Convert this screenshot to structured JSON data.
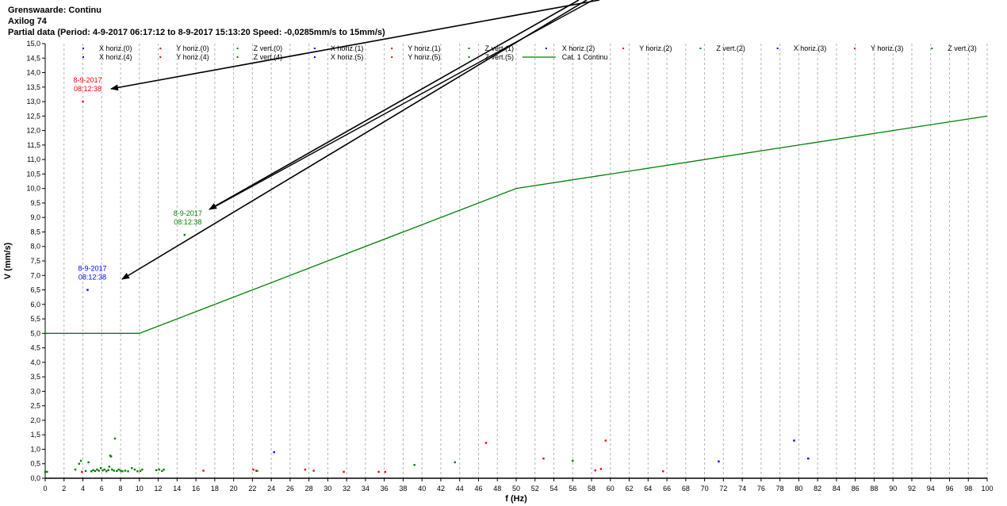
{
  "header": {
    "line1": "Grenswaarde: Continu",
    "line2": "Axilog 74",
    "line3": "Partial data (Period: 4-9-2017 06:17:12 to 8-9-2017 15:13:20 Speed: -0,0285mm/s to 15mm/s)"
  },
  "colors": {
    "x": "#0000ff",
    "y": "#ff0000",
    "z": "#008000",
    "limit": "#008000"
  },
  "chart_data": {
    "type": "scatter",
    "xlabel": "f (Hz)",
    "ylabel": "V (mm/s)",
    "xlim": [
      0,
      100
    ],
    "ylim": [
      0,
      15
    ],
    "xticks": [
      0,
      2,
      4,
      6,
      8,
      10,
      12,
      14,
      16,
      18,
      20,
      22,
      24,
      26,
      28,
      30,
      32,
      34,
      36,
      38,
      40,
      42,
      44,
      46,
      48,
      50,
      52,
      54,
      56,
      58,
      60,
      62,
      64,
      66,
      68,
      70,
      72,
      74,
      76,
      78,
      80,
      82,
      84,
      86,
      88,
      90,
      92,
      94,
      96,
      98,
      100
    ],
    "yticks": [
      0,
      0.5,
      1,
      1.5,
      2,
      2.5,
      3,
      3.5,
      4,
      4.5,
      5,
      5.5,
      6,
      6.5,
      7,
      7.5,
      8,
      8.5,
      9,
      9.5,
      10,
      10.5,
      11,
      11.5,
      12,
      12.5,
      13,
      13.5,
      14,
      14.5,
      15
    ],
    "vertical_grid": "dashed",
    "legend_position": "top",
    "legend": [
      {
        "label": "X horiz.(0)",
        "kind": "x"
      },
      {
        "label": "Y horiz.(0)",
        "kind": "y"
      },
      {
        "label": "Z vert.(0)",
        "kind": "z"
      },
      {
        "label": "X horiz.(1)",
        "kind": "x"
      },
      {
        "label": "Y horiz.(1)",
        "kind": "y"
      },
      {
        "label": "Z vert.(1)",
        "kind": "z"
      },
      {
        "label": "X horiz.(2)",
        "kind": "x"
      },
      {
        "label": "Y horiz.(2)",
        "kind": "y"
      },
      {
        "label": "Z vert.(2)",
        "kind": "z"
      },
      {
        "label": "X horiz.(3)",
        "kind": "x"
      },
      {
        "label": "Y horiz.(3)",
        "kind": "y"
      },
      {
        "label": "Z vert.(3)",
        "kind": "z"
      },
      {
        "label": "X horiz.(4)",
        "kind": "x"
      },
      {
        "label": "Y horiz.(4)",
        "kind": "y"
      },
      {
        "label": "Z vert.(4)",
        "kind": "z"
      },
      {
        "label": "X horiz.(5)",
        "kind": "x"
      },
      {
        "label": "Y horiz.(5)",
        "kind": "y"
      },
      {
        "label": "Z vert.(5)",
        "kind": "z"
      },
      {
        "label": "Cat. 1 Continu",
        "kind": "limit"
      }
    ],
    "limit_line": {
      "name": "Cat. 1 Continu",
      "x": [
        0,
        10,
        50,
        100
      ],
      "y": [
        5,
        5,
        10,
        12.5
      ]
    },
    "series": [
      {
        "kind": "x",
        "points": [
          [
            4.5,
            6.5
          ],
          [
            24.3,
            0.9
          ],
          [
            71.5,
            0.58
          ],
          [
            79.5,
            1.3
          ],
          [
            81.0,
            0.68
          ]
        ]
      },
      {
        "kind": "y",
        "points": [
          [
            4.0,
            13.0
          ],
          [
            3.9,
            0.22
          ],
          [
            16.8,
            0.26
          ],
          [
            22.1,
            0.3
          ],
          [
            22.5,
            0.25
          ],
          [
            27.6,
            0.3
          ],
          [
            28.5,
            0.26
          ],
          [
            31.7,
            0.22
          ],
          [
            35.4,
            0.22
          ],
          [
            36.1,
            0.22
          ],
          [
            46.8,
            1.22
          ],
          [
            52.9,
            0.68
          ],
          [
            58.4,
            0.27
          ],
          [
            59.0,
            0.32
          ],
          [
            59.5,
            1.3
          ],
          [
            65.6,
            0.24
          ]
        ]
      },
      {
        "kind": "z",
        "points": [
          [
            14.8,
            8.4
          ],
          [
            0.0,
            0.22
          ],
          [
            0.2,
            0.22
          ],
          [
            3.2,
            0.3
          ],
          [
            3.6,
            0.5
          ],
          [
            3.8,
            0.6
          ],
          [
            4.3,
            0.25
          ],
          [
            4.6,
            0.55
          ],
          [
            4.9,
            0.24
          ],
          [
            5.1,
            0.28
          ],
          [
            5.3,
            0.25
          ],
          [
            5.5,
            0.3
          ],
          [
            5.7,
            0.26
          ],
          [
            5.9,
            0.35
          ],
          [
            6.1,
            0.27
          ],
          [
            6.3,
            0.3
          ],
          [
            6.5,
            0.24
          ],
          [
            6.7,
            0.28
          ],
          [
            6.8,
            0.4
          ],
          [
            6.9,
            0.78
          ],
          [
            7.0,
            0.75
          ],
          [
            7.1,
            0.3
          ],
          [
            7.3,
            0.26
          ],
          [
            7.4,
            1.37
          ],
          [
            7.6,
            0.25
          ],
          [
            7.8,
            0.3
          ],
          [
            8.0,
            0.26
          ],
          [
            8.2,
            0.24
          ],
          [
            8.5,
            0.26
          ],
          [
            8.8,
            0.24
          ],
          [
            9.2,
            0.35
          ],
          [
            9.5,
            0.3
          ],
          [
            9.8,
            0.24
          ],
          [
            10.1,
            0.25
          ],
          [
            10.3,
            0.3
          ],
          [
            11.8,
            0.28
          ],
          [
            12.1,
            0.3
          ],
          [
            12.4,
            0.25
          ],
          [
            12.6,
            0.3
          ],
          [
            22.4,
            0.26
          ],
          [
            39.2,
            0.46
          ],
          [
            43.5,
            0.55
          ],
          [
            56.0,
            0.6
          ]
        ]
      }
    ],
    "annotations": [
      {
        "kind": "y",
        "date": "8-9-2017",
        "time": "08:12:38",
        "x": 4.0,
        "y": 13.0
      },
      {
        "kind": "z",
        "date": "8-9-2017",
        "time": "08:12:38",
        "x": 14.8,
        "y": 8.4
      },
      {
        "kind": "x",
        "date": "8-9-2017",
        "time": "08:12:38",
        "x": 4.5,
        "y": 6.5
      }
    ]
  }
}
